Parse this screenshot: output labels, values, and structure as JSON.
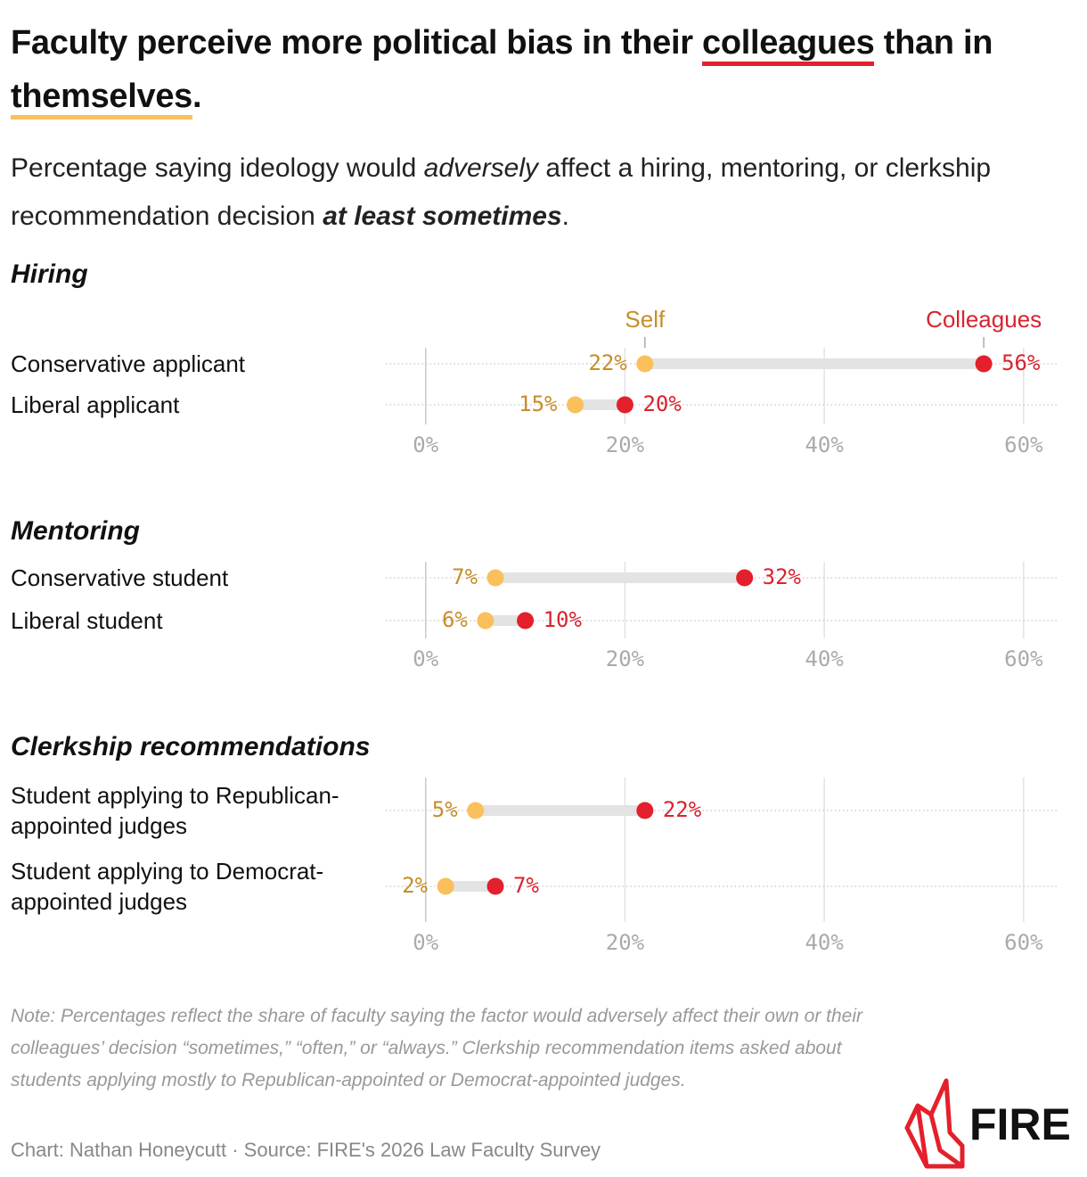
{
  "title_parts": [
    "Faculty perceive more political bias in their ",
    "colleagues",
    " than in ",
    "themselves",
    "."
  ],
  "subtitle_parts": [
    "Percentage saying ideology would ",
    "adversely",
    " affect a hiring, mentoring, or clerkship recommendation decision ",
    "at least sometimes",
    "."
  ],
  "chart_data": [
    {
      "type": "dumbbell",
      "title": "Hiring",
      "categories": [
        "Conservative applicant",
        "Liberal applicant"
      ],
      "series": [
        {
          "name": "Self",
          "color": "#fbbf5b",
          "label_color": "#c68e28",
          "values": [
            22,
            15
          ],
          "value_labels": [
            "22%",
            "15%"
          ]
        },
        {
          "name": "Colleagues",
          "color": "#e3202b",
          "label_color": "#d9232e",
          "values": [
            56,
            20
          ],
          "value_labels": [
            "56%",
            "20%"
          ]
        }
      ],
      "xlim": [
        -4,
        63.5
      ],
      "xticks": [
        {
          "value": 0,
          "label": "0%"
        },
        {
          "value": 20,
          "label": "20%"
        },
        {
          "value": 40,
          "label": "40%"
        },
        {
          "value": 60,
          "label": "60%"
        }
      ],
      "grid": true
    },
    {
      "type": "dumbbell",
      "title": "Mentoring",
      "categories": [
        "Conservative student",
        "Liberal student"
      ],
      "series": [
        {
          "color": "#fbbf5b",
          "label_color": "#c68e28",
          "values": [
            7,
            6
          ],
          "value_labels": [
            "7%",
            "6%"
          ]
        },
        {
          "color": "#e3202b",
          "label_color": "#d9232e",
          "values": [
            32,
            10
          ],
          "value_labels": [
            "32%",
            "10%"
          ]
        }
      ],
      "xlim": [
        -4,
        63.5
      ],
      "xticks": [
        {
          "value": 0,
          "label": "0%"
        },
        {
          "value": 20,
          "label": "20%"
        },
        {
          "value": 40,
          "label": "40%"
        },
        {
          "value": 60,
          "label": "60%"
        }
      ],
      "grid": true
    },
    {
      "type": "dumbbell",
      "title": "Clerkship recommendations",
      "categories": [
        "Student applying to Republican-\nappointed judges",
        "Student applying to Democrat-\nappointed judges"
      ],
      "series": [
        {
          "color": "#fbbf5b",
          "label_color": "#c68e28",
          "values": [
            5,
            2
          ],
          "value_labels": [
            "5%",
            "2%"
          ]
        },
        {
          "color": "#e3202b",
          "label_color": "#d9232e",
          "values": [
            22,
            7
          ],
          "value_labels": [
            "22%",
            "7%"
          ]
        }
      ],
      "xlim": [
        -4,
        63.5
      ],
      "xticks": [
        {
          "value": 0,
          "label": "0%"
        },
        {
          "value": 20,
          "label": "20%"
        },
        {
          "value": 40,
          "label": "40%"
        },
        {
          "value": 60,
          "label": "60%"
        }
      ],
      "grid": true
    }
  ],
  "note": "Note: Percentages reflect the share of faculty saying the factor would adversely affect their own or their colleagues’ decision “sometimes,” “often,” or “always.” Clerkship recommendation items asked about students applying mostly to Republican-appointed or Democrat-appointed judges.",
  "source": "Chart: Nathan Honeycutt · Source: FIRE's 2026 Law Faculty Survey",
  "logo": "FIRE"
}
